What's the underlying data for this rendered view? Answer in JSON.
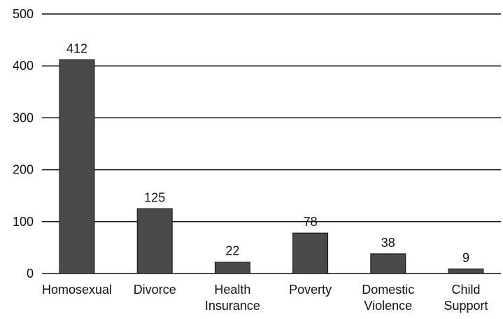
{
  "chart_data": {
    "type": "bar",
    "categories": [
      [
        "Homosexual"
      ],
      [
        "Divorce"
      ],
      [
        "Health",
        "Insurance"
      ],
      [
        "Poverty"
      ],
      [
        "Domestic",
        "Violence"
      ],
      [
        "Child",
        "Support"
      ]
    ],
    "values": [
      412,
      125,
      22,
      78,
      38,
      9
    ],
    "data_labels": [
      "412",
      "125",
      "22",
      "78",
      "38",
      "9"
    ],
    "title": "",
    "xlabel": "",
    "ylabel": "",
    "ylim": [
      0,
      500
    ],
    "yticks": [
      "0",
      "100",
      "200",
      "300",
      "400",
      "500"
    ],
    "grid": true,
    "legend": "none",
    "colors": {
      "bar_fill": "#4a4a4a",
      "bar_stroke": "#111111",
      "grid": "#111111",
      "text": "#111111"
    }
  }
}
